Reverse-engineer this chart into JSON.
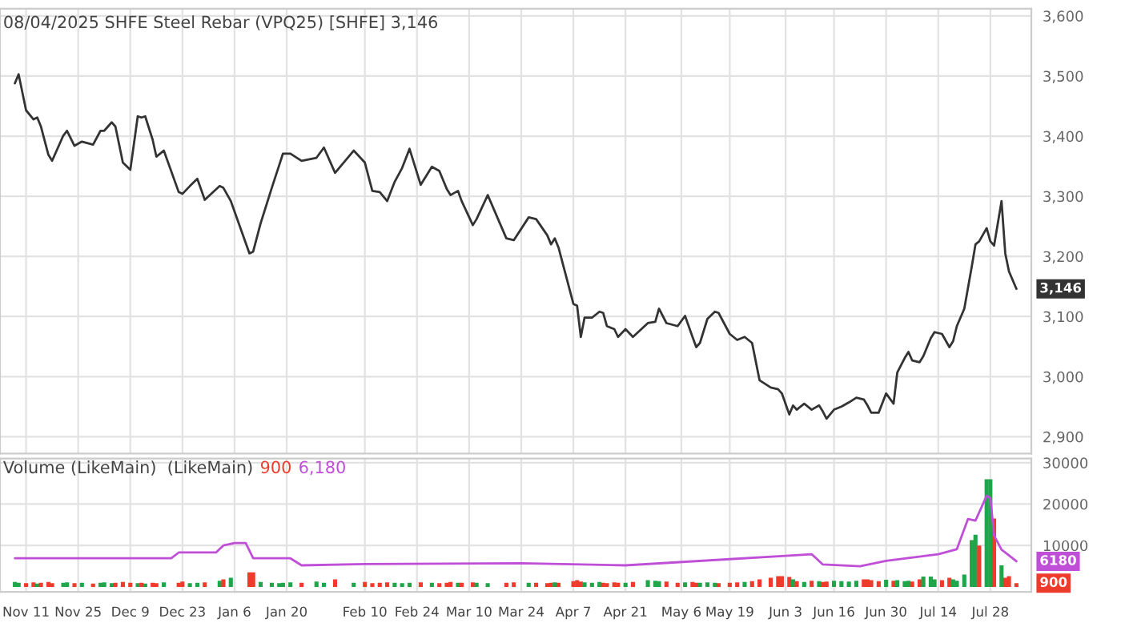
{
  "chart_data": [
    {
      "type": "line",
      "title": "08/04/2025 SHFE Steel Rebar (VPQ25) [SHFE] 3,146",
      "grid": true,
      "tick_labels": "y",
      "xlim": [
        "2024-11-04",
        "2025-08-08"
      ],
      "ylim": [
        2872,
        3612
      ],
      "xticks": [
        {
          "value": "2024-11-11",
          "label": null
        },
        {
          "value": "2024-11-25",
          "label": null
        },
        {
          "value": "2024-12-09",
          "label": null
        },
        {
          "value": "2024-12-23",
          "label": null
        },
        {
          "value": "2025-01-06",
          "label": null
        },
        {
          "value": "2025-01-20",
          "label": null
        },
        {
          "value": "2025-02-10",
          "label": null
        },
        {
          "value": "2025-02-24",
          "label": null
        },
        {
          "value": "2025-03-10",
          "label": null
        },
        {
          "value": "2025-03-24",
          "label": null
        },
        {
          "value": "2025-04-07",
          "label": null
        },
        {
          "value": "2025-04-21",
          "label": null
        },
        {
          "value": "2025-05-06",
          "label": null
        },
        {
          "value": "2025-05-19",
          "label": null
        },
        {
          "value": "2025-06-03",
          "label": null
        },
        {
          "value": "2025-06-16",
          "label": null
        },
        {
          "value": "2025-06-30",
          "label": null
        },
        {
          "value": "2025-07-14",
          "label": null
        },
        {
          "value": "2025-07-28",
          "label": null
        }
      ],
      "yticks": [
        {
          "value": 2900,
          "label": "2,900"
        },
        {
          "value": 3000,
          "label": "3,000"
        },
        {
          "value": 3100,
          "label": "3,100"
        },
        {
          "value": 3200,
          "label": "3,200"
        },
        {
          "value": 3300,
          "label": "3,300"
        },
        {
          "value": 3400,
          "label": "3,400"
        },
        {
          "value": 3500,
          "label": "3,500"
        },
        {
          "value": 3600,
          "label": "3,600"
        }
      ],
      "annotations": [
        {
          "text": "3,146",
          "x": "2025-08-04",
          "y": 3146
        }
      ],
      "series": [
        {
          "color": "#333333",
          "x": [
            "2024-11-08",
            "2024-11-09",
            "2024-11-11",
            "2024-11-13",
            "2024-11-14",
            "2024-11-15",
            "2024-11-17",
            "2024-11-18",
            "2024-11-21",
            "2024-11-22",
            "2024-11-24",
            "2024-11-26",
            "2024-11-29",
            "2024-12-01",
            "2024-12-02",
            "2024-12-04",
            "2024-12-05",
            "2024-12-07",
            "2024-12-09",
            "2024-12-11",
            "2024-12-12",
            "2024-12-13",
            "2024-12-15",
            "2024-12-16",
            "2024-12-18",
            "2024-12-22",
            "2024-12-23",
            "2024-12-25",
            "2024-12-27",
            "2024-12-29",
            "2025-01-02",
            "2025-01-03",
            "2025-01-05",
            "2025-01-10",
            "2025-01-11",
            "2025-01-13",
            "2025-01-16",
            "2025-01-18",
            "2025-01-19",
            "2025-01-21",
            "2025-01-24",
            "2025-01-28",
            "2025-01-30",
            "2025-02-02",
            "2025-02-07",
            "2025-02-10",
            "2025-02-12",
            "2025-02-14",
            "2025-02-16",
            "2025-02-18",
            "2025-02-20",
            "2025-02-22",
            "2025-02-25",
            "2025-02-28",
            "2025-03-02",
            "2025-03-04",
            "2025-03-05",
            "2025-03-07",
            "2025-03-08",
            "2025-03-11",
            "2025-03-12",
            "2025-03-15",
            "2025-03-20",
            "2025-03-22",
            "2025-03-26",
            "2025-03-28",
            "2025-03-31",
            "2025-04-01",
            "2025-04-02",
            "2025-04-03",
            "2025-04-07",
            "2025-04-08",
            "2025-04-09",
            "2025-04-10",
            "2025-04-12",
            "2025-04-14",
            "2025-04-15",
            "2025-04-16",
            "2025-04-18",
            "2025-04-19",
            "2025-04-21",
            "2025-04-23",
            "2025-04-27",
            "2025-04-29",
            "2025-04-30",
            "2025-05-02",
            "2025-05-05",
            "2025-05-07",
            "2025-05-09",
            "2025-05-10",
            "2025-05-11",
            "2025-05-13",
            "2025-05-15",
            "2025-05-16",
            "2025-05-19",
            "2025-05-21",
            "2025-05-23",
            "2025-05-25",
            "2025-05-27",
            "2025-05-30",
            "2025-06-01",
            "2025-06-02",
            "2025-06-04",
            "2025-06-05",
            "2025-06-06",
            "2025-06-08",
            "2025-06-10",
            "2025-06-12",
            "2025-06-13",
            "2025-06-14",
            "2025-06-16",
            "2025-06-18",
            "2025-06-20",
            "2025-06-22",
            "2025-06-24",
            "2025-06-25",
            "2025-06-26",
            "2025-06-28",
            "2025-06-30",
            "2025-07-02",
            "2025-07-03",
            "2025-07-05",
            "2025-07-06",
            "2025-07-07",
            "2025-07-09",
            "2025-07-10",
            "2025-07-12",
            "2025-07-13",
            "2025-07-15",
            "2025-07-17",
            "2025-07-18",
            "2025-07-19",
            "2025-07-21",
            "2025-07-23",
            "2025-07-24",
            "2025-07-25",
            "2025-07-27",
            "2025-07-28",
            "2025-07-29",
            "2025-07-31",
            "2025-08-01",
            "2025-08-02",
            "2025-08-04"
          ],
          "values": [
            3488,
            3503,
            3443,
            3428,
            3431,
            3416,
            3369,
            3359,
            3401,
            3409,
            3384,
            3391,
            3386,
            3409,
            3409,
            3423,
            3416,
            3356,
            3344,
            3433,
            3431,
            3433,
            3394,
            3366,
            3376,
            3307,
            3304,
            3317,
            3329,
            3294,
            3317,
            3314,
            3292,
            3205,
            3208,
            3255,
            3314,
            3352,
            3371,
            3371,
            3359,
            3364,
            3381,
            3339,
            3376,
            3356,
            3309,
            3307,
            3292,
            3324,
            3347,
            3379,
            3319,
            3349,
            3342,
            3312,
            3302,
            3309,
            3292,
            3252,
            3262,
            3302,
            3230,
            3227,
            3265,
            3262,
            3235,
            3220,
            3230,
            3215,
            3121,
            3118,
            3066,
            3098,
            3098,
            3108,
            3106,
            3084,
            3079,
            3066,
            3079,
            3066,
            3089,
            3091,
            3113,
            3089,
            3084,
            3101,
            3066,
            3049,
            3056,
            3096,
            3108,
            3106,
            3071,
            3061,
            3066,
            3056,
            2994,
            2982,
            2979,
            2972,
            2937,
            2952,
            2945,
            2955,
            2945,
            2952,
            2942,
            2930,
            2945,
            2950,
            2957,
            2965,
            2962,
            2952,
            2940,
            2940,
            2972,
            2955,
            3007,
            3031,
            3041,
            3027,
            3024,
            3034,
            3064,
            3074,
            3071,
            3049,
            3059,
            3084,
            3113,
            3183,
            3220,
            3225,
            3247,
            3225,
            3218,
            3292,
            3205,
            3175,
            3146
          ]
        }
      ]
    },
    {
      "type": "bar",
      "title": "Volume (LikeMain)  (LikeMain)",
      "grid": true,
      "xlim": [
        "2024-11-04",
        "2025-08-08"
      ],
      "ylim": [
        -1200,
        31000
      ],
      "xticks": [
        {
          "value": "2024-11-11",
          "label": "Nov 11"
        },
        {
          "value": "2024-11-25",
          "label": "Nov 25"
        },
        {
          "value": "2024-12-09",
          "label": "Dec 9"
        },
        {
          "value": "2024-12-23",
          "label": "Dec 23"
        },
        {
          "value": "2025-01-06",
          "label": "Jan 6"
        },
        {
          "value": "2025-01-20",
          "label": "Jan 20"
        },
        {
          "value": "2025-02-10",
          "label": "Feb 10"
        },
        {
          "value": "2025-02-24",
          "label": "Feb 24"
        },
        {
          "value": "2025-03-10",
          "label": "Mar 10"
        },
        {
          "value": "2025-03-24",
          "label": "Mar 24"
        },
        {
          "value": "2025-04-07",
          "label": "Apr 7"
        },
        {
          "value": "2025-04-21",
          "label": "Apr 21"
        },
        {
          "value": "2025-05-06",
          "label": "May 6"
        },
        {
          "value": "2025-05-19",
          "label": "May 19"
        },
        {
          "value": "2025-06-03",
          "label": "Jun 3"
        },
        {
          "value": "2025-06-16",
          "label": "Jun 16"
        },
        {
          "value": "2025-06-30",
          "label": "Jun 30"
        },
        {
          "value": "2025-07-14",
          "label": "Jul 14"
        },
        {
          "value": "2025-07-28",
          "label": "Jul 28"
        }
      ],
      "yticks": [
        10000,
        20000,
        30000
      ],
      "annotations": [
        "900",
        "6,180",
        {
          "text": "900",
          "x": "2025-08-04",
          "y": 900
        },
        {
          "text": "6180",
          "x": "2025-08-04",
          "y": 6180
        }
      ],
      "series": [
        {
          "x": [
            "2024-11-08",
            "2024-11-09",
            "2024-11-11",
            "2024-11-13",
            "2024-11-14",
            "2024-11-15",
            "2024-11-17",
            "2024-11-18",
            "2024-11-21",
            "2024-11-22",
            "2024-11-24",
            "2024-11-26",
            "2024-11-29",
            "2024-12-01",
            "2024-12-02",
            "2024-12-04",
            "2024-12-05",
            "2024-12-07",
            "2024-12-09",
            "2024-12-11",
            "2024-12-12",
            "2024-12-13",
            "2024-12-15",
            "2024-12-16",
            "2024-12-18",
            "2024-12-22",
            "2024-12-23",
            "2024-12-25",
            "2024-12-27",
            "2024-12-29",
            "2025-01-02",
            "2025-01-03",
            "2025-01-05",
            "2025-01-10",
            "2025-01-11",
            "2025-01-13",
            "2025-01-16",
            "2025-01-18",
            "2025-01-19",
            "2025-01-21",
            "2025-01-24",
            "2025-01-28",
            "2025-01-30",
            "2025-02-02",
            "2025-02-07",
            "2025-02-10",
            "2025-02-12",
            "2025-02-14",
            "2025-02-16",
            "2025-02-18",
            "2025-02-20",
            "2025-02-22",
            "2025-02-25",
            "2025-02-28",
            "2025-03-02",
            "2025-03-04",
            "2025-03-05",
            "2025-03-07",
            "2025-03-08",
            "2025-03-11",
            "2025-03-12",
            "2025-03-15",
            "2025-03-20",
            "2025-03-22",
            "2025-03-26",
            "2025-03-28",
            "2025-03-31",
            "2025-04-01",
            "2025-04-02",
            "2025-04-03",
            "2025-04-07",
            "2025-04-08",
            "2025-04-09",
            "2025-04-10",
            "2025-04-12",
            "2025-04-14",
            "2025-04-15",
            "2025-04-16",
            "2025-04-18",
            "2025-04-19",
            "2025-04-21",
            "2025-04-23",
            "2025-04-27",
            "2025-04-29",
            "2025-04-30",
            "2025-05-02",
            "2025-05-05",
            "2025-05-07",
            "2025-05-09",
            "2025-05-10",
            "2025-05-11",
            "2025-05-13",
            "2025-05-15",
            "2025-05-16",
            "2025-05-19",
            "2025-05-21",
            "2025-05-23",
            "2025-05-25",
            "2025-05-27",
            "2025-05-30",
            "2025-06-01",
            "2025-06-02",
            "2025-06-04",
            "2025-06-05",
            "2025-06-06",
            "2025-06-08",
            "2025-06-10",
            "2025-06-12",
            "2025-06-13",
            "2025-06-14",
            "2025-06-16",
            "2025-06-18",
            "2025-06-20",
            "2025-06-22",
            "2025-06-24",
            "2025-06-25",
            "2025-06-26",
            "2025-06-28",
            "2025-06-30",
            "2025-07-02",
            "2025-07-03",
            "2025-07-05",
            "2025-07-06",
            "2025-07-07",
            "2025-07-09",
            "2025-07-10",
            "2025-07-12",
            "2025-07-13",
            "2025-07-15",
            "2025-07-17",
            "2025-07-18",
            "2025-07-19",
            "2025-07-21",
            "2025-07-23",
            "2025-07-24",
            "2025-07-25",
            "2025-07-27",
            "2025-07-28",
            "2025-07-29",
            "2025-07-31",
            "2025-08-01",
            "2025-08-02",
            "2025-08-04"
          ],
          "values": [
            1200,
            1000,
            900,
            1100,
            800,
            1000,
            1200,
            900,
            1000,
            1100,
            900,
            1000,
            800,
            1000,
            1100,
            900,
            1000,
            1200,
            1000,
            900,
            1000,
            800,
            1000,
            900,
            1100,
            1000,
            1300,
            900,
            1000,
            1100,
            1500,
            1800,
            2200,
            3500,
            3500,
            1200,
            1000,
            900,
            1000,
            1100,
            1000,
            1300,
            1000,
            1800,
            1000,
            1200,
            900,
            1000,
            1100,
            1000,
            900,
            1000,
            1100,
            1000,
            900,
            1000,
            1200,
            1000,
            1000,
            1100,
            1000,
            900,
            1000,
            1100,
            1000,
            1000,
            900,
            1000,
            1100,
            1000,
            1400,
            1600,
            1300,
            1100,
            1000,
            1200,
            1000,
            900,
            1100,
            1000,
            1000,
            1200,
            1600,
            1500,
            1400,
            1300,
            1000,
            1100,
            1200,
            1000,
            1000,
            1100,
            1000,
            900,
            1000,
            1100,
            1200,
            1400,
            1800,
            2200,
            2600,
            2600,
            2400,
            1800,
            1400,
            1200,
            1500,
            1400,
            1200,
            1300,
            1500,
            1400,
            1300,
            1500,
            1800,
            1800,
            1600,
            1400,
            1700,
            1500,
            1600,
            1400,
            1500,
            1300,
            1800,
            2500,
            2500,
            1800,
            1600,
            2200,
            1800,
            1500,
            3000,
            11300,
            12600,
            10000,
            26000,
            26000,
            16500,
            5200,
            2200,
            2600,
            900
          ],
          "colors": [
            "#1fa64a",
            "#1fa64a",
            "#ee3b2b",
            "#ee3b2b",
            "#1fa64a",
            "#ee3b2b",
            "#ee3b2b",
            "#ee3b2b",
            "#1fa64a",
            "#1fa64a",
            "#ee3b2b",
            "#1fa64a",
            "#ee3b2b",
            "#1fa64a",
            "#1fa64a",
            "#1fa64a",
            "#ee3b2b",
            "#ee3b2b",
            "#ee3b2b",
            "#1fa64a",
            "#ee3b2b",
            "#1fa64a",
            "#ee3b2b",
            "#ee3b2b",
            "#1fa64a",
            "#ee3b2b",
            "#ee3b2b",
            "#1fa64a",
            "#1fa64a",
            "#ee3b2b",
            "#1fa64a",
            "#ee3b2b",
            "#1fa64a",
            "#ee3b2b",
            "#ee3b2b",
            "#1fa64a",
            "#1fa64a",
            "#1fa64a",
            "#1fa64a",
            "#1fa64a",
            "#ee3b2b",
            "#1fa64a",
            "#1fa64a",
            "#ee3b2b",
            "#1fa64a",
            "#ee3b2b",
            "#ee3b2b",
            "#ee3b2b",
            "#ee3b2b",
            "#1fa64a",
            "#1fa64a",
            "#1fa64a",
            "#ee3b2b",
            "#1fa64a",
            "#ee3b2b",
            "#ee3b2b",
            "#ee3b2b",
            "#1fa64a",
            "#ee3b2b",
            "#ee3b2b",
            "#1fa64a",
            "#1fa64a",
            "#ee3b2b",
            "#ee3b2b",
            "#1fa64a",
            "#ee3b2b",
            "#ee3b2b",
            "#ee3b2b",
            "#1fa64a",
            "#ee3b2b",
            "#ee3b2b",
            "#ee3b2b",
            "#ee3b2b",
            "#1fa64a",
            "#1fa64a",
            "#1fa64a",
            "#ee3b2b",
            "#ee3b2b",
            "#ee3b2b",
            "#ee3b2b",
            "#1fa64a",
            "#ee3b2b",
            "#1fa64a",
            "#1fa64a",
            "#1fa64a",
            "#ee3b2b",
            "#ee3b2b",
            "#1fa64a",
            "#ee3b2b",
            "#ee3b2b",
            "#1fa64a",
            "#1fa64a",
            "#1fa64a",
            "#ee3b2b",
            "#ee3b2b",
            "#ee3b2b",
            "#1fa64a",
            "#ee3b2b",
            "#ee3b2b",
            "#ee3b2b",
            "#ee3b2b",
            "#ee3b2b",
            "#ee3b2b",
            "#1fa64a",
            "#ee3b2b",
            "#1fa64a",
            "#ee3b2b",
            "#1fa64a",
            "#ee3b2b",
            "#ee3b2b",
            "#1fa64a",
            "#1fa64a",
            "#1fa64a",
            "#1fa64a",
            "#ee3b2b",
            "#ee3b2b",
            "#ee3b2b",
            "#ee3b2b",
            "#1fa64a",
            "#ee3b2b",
            "#1fa64a",
            "#1fa64a",
            "#1fa64a",
            "#ee3b2b",
            "#ee3b2b",
            "#1fa64a",
            "#1fa64a",
            "#1fa64a",
            "#ee3b2b",
            "#ee3b2b",
            "#1fa64a",
            "#1fa64a",
            "#1fa64a",
            "#1fa64a",
            "#1fa64a",
            "#ee3b2b",
            "#1fa64a",
            "#1fa64a",
            "#ee3b2b",
            "#1fa64a",
            "#ee3b2b",
            "#ee3b2b",
            "#ee3b2b"
          ]
        },
        {
          "type": "line",
          "color": "#c04fd8",
          "x": [
            "2024-11-08",
            "2024-12-20",
            "2024-12-22",
            "2025-01-01",
            "2025-01-03",
            "2025-01-06",
            "2025-01-09",
            "2025-01-11",
            "2025-01-21",
            "2025-01-24",
            "2025-02-10",
            "2025-03-24",
            "2025-04-21",
            "2025-05-19",
            "2025-06-03",
            "2025-06-10",
            "2025-06-13",
            "2025-06-23",
            "2025-06-30",
            "2025-07-14",
            "2025-07-19",
            "2025-07-22",
            "2025-07-24",
            "2025-07-27",
            "2025-07-28",
            "2025-07-29",
            "2025-07-31",
            "2025-08-04"
          ],
          "values": [
            6900,
            6900,
            8300,
            8300,
            10000,
            10600,
            10600,
            6900,
            6900,
            5200,
            5500,
            5700,
            5200,
            6700,
            7500,
            7900,
            5400,
            5000,
            6300,
            7900,
            9100,
            16400,
            16000,
            22000,
            21500,
            12400,
            9000,
            6180
          ]
        }
      ]
    }
  ]
}
